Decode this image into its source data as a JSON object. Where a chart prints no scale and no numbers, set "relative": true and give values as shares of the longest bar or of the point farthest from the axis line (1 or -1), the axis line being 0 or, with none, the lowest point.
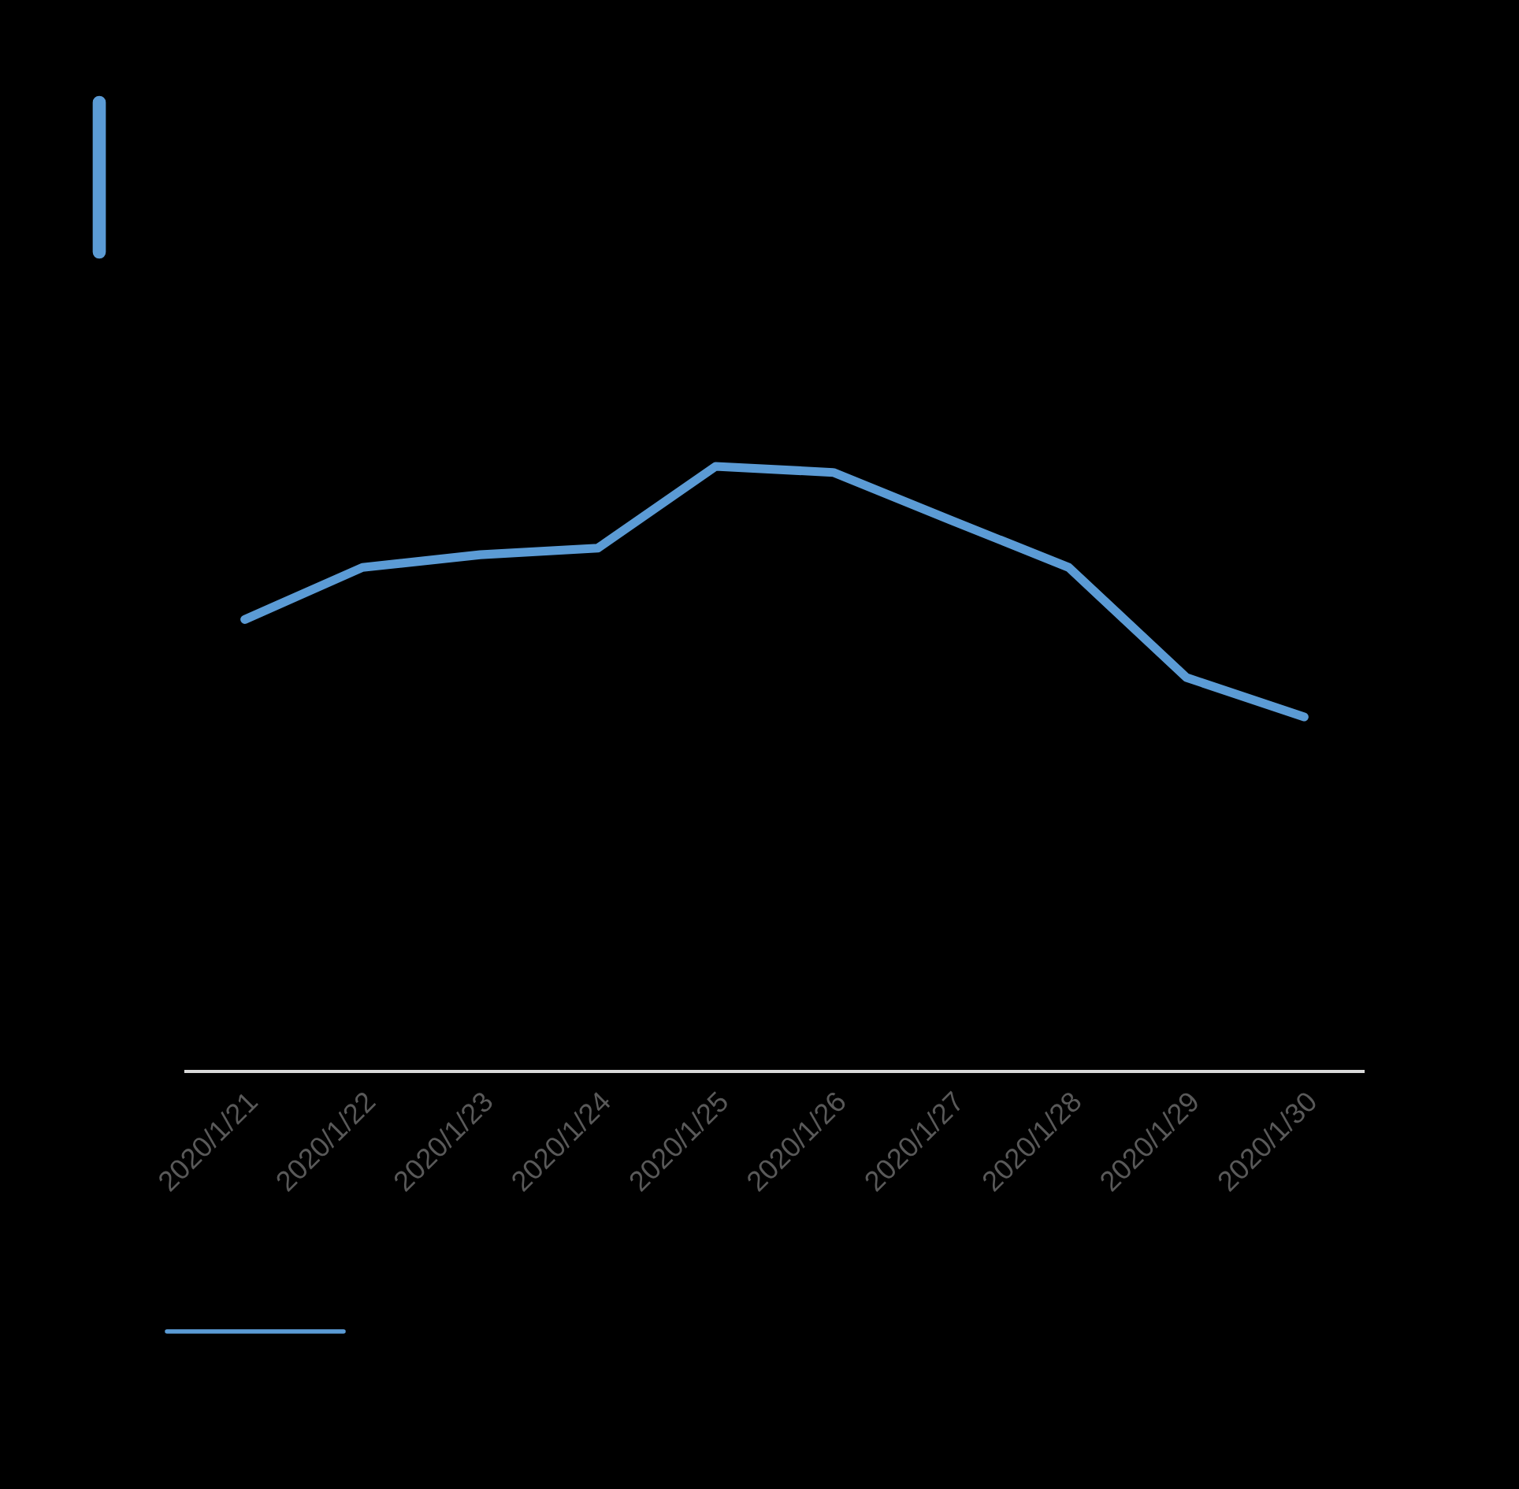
{
  "chart_data": {
    "type": "line",
    "relative": true,
    "categories": [
      "2020/1/21",
      "2020/1/22",
      "2020/1/23",
      "2020/1/24",
      "2020/1/25",
      "2020/1/26",
      "2020/1/27",
      "2020/1/28",
      "2020/1/29",
      "2020/1/30"
    ],
    "series": [
      {
        "color": "#5b9bd5",
        "values": [
          0.747,
          0.833,
          0.854,
          0.865,
          1.0,
          0.99,
          0.911,
          0.833,
          0.651,
          0.586
        ]
      }
    ],
    "grid": false,
    "marker": "none",
    "line_style": "solid"
  }
}
